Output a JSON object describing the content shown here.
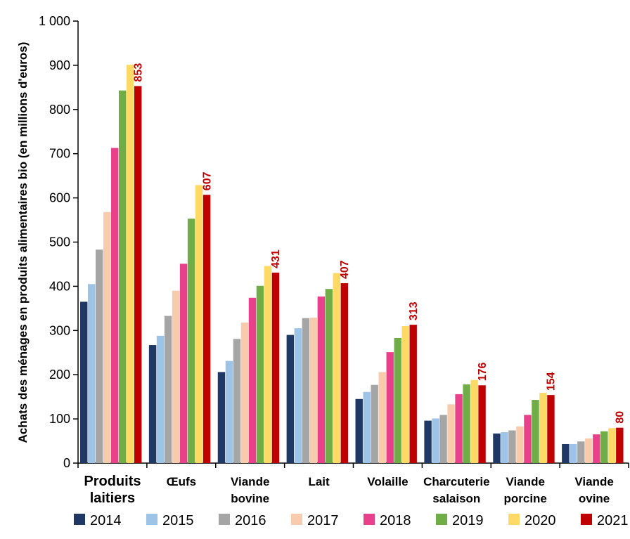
{
  "chart_data": {
    "type": "bar",
    "ylabel": "Achats des ménages en produits alimentaires bio  (en millions d'euros)",
    "ylim": [
      0,
      1000
    ],
    "yticks": [
      "0",
      "100",
      "200",
      "300",
      "400",
      "500",
      "600",
      "700",
      "800",
      "900",
      "1 000"
    ],
    "categories": [
      [
        "Produits",
        "laitiers"
      ],
      [
        "Œufs"
      ],
      [
        "Viande",
        "bovine"
      ],
      [
        "Lait"
      ],
      [
        "Volaille"
      ],
      [
        "Charcuterie",
        "salaison"
      ],
      [
        "Viande",
        "porcine"
      ],
      [
        "Viande",
        "ovine"
      ]
    ],
    "series": [
      {
        "name": "2014",
        "color": "#1f3864",
        "values": [
          365,
          267,
          206,
          290,
          145,
          96,
          67,
          43
        ]
      },
      {
        "name": "2015",
        "color": "#9dc3e6",
        "values": [
          405,
          288,
          231,
          305,
          161,
          101,
          70,
          43
        ]
      },
      {
        "name": "2016",
        "color": "#a5a5a5",
        "values": [
          483,
          333,
          281,
          328,
          177,
          109,
          74,
          49
        ]
      },
      {
        "name": "2017",
        "color": "#f8cbad",
        "values": [
          568,
          390,
          318,
          329,
          206,
          133,
          83,
          56
        ]
      },
      {
        "name": "2018",
        "color": "#e8408a",
        "values": [
          713,
          451,
          374,
          377,
          251,
          156,
          109,
          65
        ]
      },
      {
        "name": "2019",
        "color": "#70ad47",
        "values": [
          843,
          553,
          401,
          394,
          283,
          178,
          143,
          72
        ]
      },
      {
        "name": "2020",
        "color": "#ffd966",
        "values": [
          901,
          629,
          446,
          430,
          310,
          188,
          159,
          79
        ]
      },
      {
        "name": "2021",
        "color": "#c00000",
        "values": [
          853,
          607,
          431,
          407,
          313,
          176,
          154,
          80
        ]
      }
    ],
    "data_labels": {
      "series": "2021",
      "color": "#c00000",
      "values": [
        "853",
        "607",
        "431",
        "407",
        "313",
        "176",
        "154",
        "80"
      ]
    },
    "legend": {
      "position": "bottom"
    },
    "grid": false
  }
}
